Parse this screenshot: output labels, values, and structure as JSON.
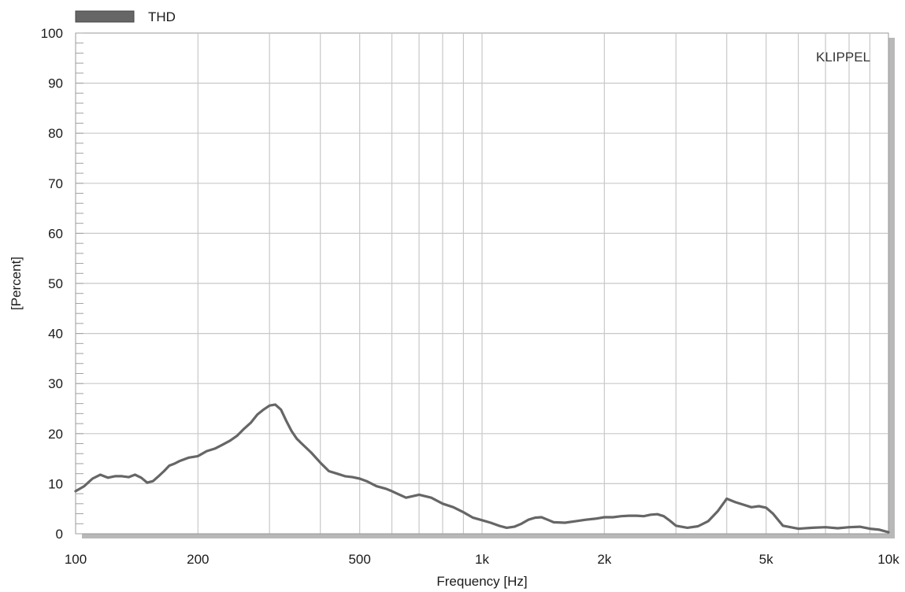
{
  "chart_data": {
    "type": "line",
    "xscale": "log",
    "xlim": [
      100,
      10000
    ],
    "ylim": [
      0,
      100
    ],
    "xlabel": "Frequency [Hz]",
    "ylabel": "[Percent]",
    "brand": "KLIPPEL",
    "grid": true,
    "legend_position": "top-left",
    "x_ticks": [
      {
        "value": 100,
        "label": "100"
      },
      {
        "value": 200,
        "label": "200"
      },
      {
        "value": 500,
        "label": "500"
      },
      {
        "value": 1000,
        "label": "1k"
      },
      {
        "value": 2000,
        "label": "2k"
      },
      {
        "value": 5000,
        "label": "5k"
      },
      {
        "value": 10000,
        "label": "10k"
      }
    ],
    "y_ticks": [
      {
        "value": 0,
        "label": "0"
      },
      {
        "value": 10,
        "label": "10"
      },
      {
        "value": 20,
        "label": "20"
      },
      {
        "value": 30,
        "label": "30"
      },
      {
        "value": 40,
        "label": "40"
      },
      {
        "value": 50,
        "label": "50"
      },
      {
        "value": 60,
        "label": "60"
      },
      {
        "value": 70,
        "label": "70"
      },
      {
        "value": 80,
        "label": "80"
      },
      {
        "value": 90,
        "label": "90"
      },
      {
        "value": 100,
        "label": "100"
      }
    ],
    "series": [
      {
        "name": "THD",
        "color": "#666666",
        "x": [
          100,
          105,
          110,
          115,
          120,
          125,
          130,
          135,
          140,
          145,
          150,
          155,
          160,
          165,
          170,
          175,
          180,
          190,
          200,
          210,
          220,
          230,
          240,
          250,
          260,
          270,
          280,
          290,
          300,
          310,
          320,
          330,
          340,
          350,
          360,
          380,
          400,
          420,
          440,
          460,
          480,
          500,
          520,
          550,
          580,
          600,
          650,
          700,
          750,
          800,
          850,
          900,
          950,
          1000,
          1050,
          1100,
          1150,
          1200,
          1250,
          1300,
          1350,
          1400,
          1450,
          1500,
          1600,
          1700,
          1800,
          1900,
          2000,
          2100,
          2200,
          2300,
          2400,
          2500,
          2600,
          2700,
          2800,
          2900,
          3000,
          3200,
          3400,
          3600,
          3800,
          4000,
          4200,
          4400,
          4600,
          4800,
          5000,
          5200,
          5500,
          6000,
          6500,
          7000,
          7500,
          8000,
          8500,
          9000,
          9500,
          10000
        ],
        "values": [
          8.5,
          9.5,
          11,
          11.8,
          11.2,
          11.5,
          11.5,
          11.3,
          11.8,
          11.2,
          10.2,
          10.5,
          11.5,
          12.5,
          13.6,
          14,
          14.5,
          15.2,
          15.5,
          16.5,
          17,
          17.8,
          18.6,
          19.6,
          21,
          22.2,
          23.8,
          24.8,
          25.6,
          25.8,
          24.8,
          22.5,
          20.5,
          19,
          18,
          16.2,
          14.2,
          12.5,
          12,
          11.5,
          11.3,
          11,
          10.5,
          9.5,
          9,
          8.5,
          7.2,
          7.8,
          7.2,
          6,
          5.3,
          4.3,
          3.2,
          2.7,
          2.2,
          1.6,
          1.2,
          1.4,
          2,
          2.8,
          3.2,
          3.3,
          2.8,
          2.3,
          2.2,
          2.5,
          2.8,
          3,
          3.3,
          3.3,
          3.5,
          3.6,
          3.6,
          3.5,
          3.8,
          3.9,
          3.5,
          2.6,
          1.6,
          1.2,
          1.5,
          2.5,
          4.5,
          7,
          6.3,
          5.8,
          5.3,
          5.5,
          5.2,
          4,
          1.6,
          1,
          1.2,
          1.3,
          1.1,
          1.3,
          1.4,
          1,
          0.8,
          0.3
        ]
      }
    ]
  }
}
